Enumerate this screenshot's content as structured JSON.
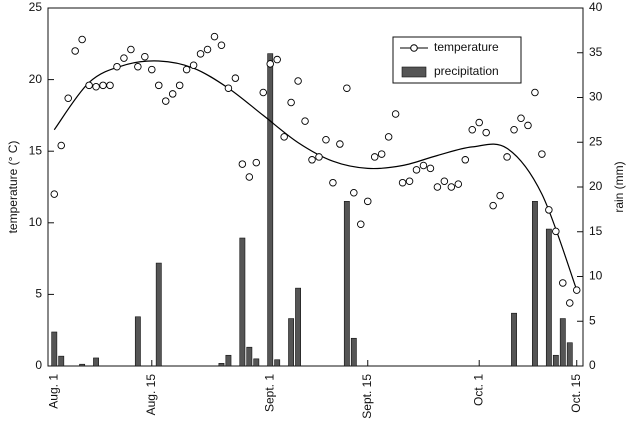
{
  "chart_data": {
    "type": "scatter-bar",
    "ylabel": "temperature (° C)",
    "y2label": "rain (mm)",
    "xlim": [
      -0.9,
      75.9
    ],
    "xticks": [
      {
        "value": 0,
        "label": "Aug. 1"
      },
      {
        "value": 14,
        "label": "Aug. 15"
      },
      {
        "value": 31,
        "label": "Sept. 1"
      },
      {
        "value": 45,
        "label": "Sept. 15"
      },
      {
        "value": 61,
        "label": "Oct. 1"
      },
      {
        "value": 75,
        "label": "Oct. 15"
      }
    ],
    "ylim": [
      0,
      25
    ],
    "yticks": [
      0,
      5,
      10,
      15,
      20,
      25
    ],
    "y2lim": [
      0,
      40
    ],
    "y2ticks": [
      0,
      5,
      10,
      15,
      20,
      25,
      30,
      35,
      40
    ],
    "legend": "upper right",
    "x": [
      0,
      1,
      2,
      3,
      4,
      5,
      6,
      7,
      8,
      9,
      10,
      11,
      12,
      13,
      14,
      15,
      16,
      17,
      18,
      19,
      20,
      21,
      22,
      23,
      24,
      25,
      26,
      27,
      28,
      29,
      30,
      31,
      32,
      33,
      34,
      35,
      36,
      37,
      38,
      39,
      40,
      41,
      42,
      43,
      44,
      45,
      46,
      47,
      48,
      49,
      50,
      51,
      52,
      53,
      54,
      55,
      56,
      57,
      58,
      59,
      60,
      61,
      62,
      63,
      64,
      65,
      66,
      67,
      68,
      69,
      70,
      71,
      72,
      73,
      74,
      75
    ],
    "series": [
      {
        "name": "temperature",
        "color": "#000000",
        "values": [
          12.0,
          15.4,
          18.7,
          22.0,
          22.8,
          19.6,
          19.5,
          19.6,
          19.6,
          20.9,
          21.5,
          22.1,
          20.9,
          21.6,
          20.7,
          19.6,
          18.5,
          19.0,
          19.6,
          20.7,
          21.0,
          21.8,
          22.1,
          23.0,
          22.4,
          19.4,
          20.1,
          14.1,
          13.2,
          14.2,
          19.1,
          21.1,
          21.4,
          16.0,
          18.4,
          19.9,
          17.1,
          14.4,
          14.6,
          15.8,
          12.8,
          15.5,
          19.4,
          12.1,
          9.9,
          11.5,
          14.6,
          14.8,
          16.0,
          17.6,
          12.8,
          12.9,
          13.7,
          14.0,
          13.8,
          12.5,
          12.9,
          12.5,
          12.7,
          14.4,
          16.5,
          17.0,
          16.3,
          11.2,
          11.9,
          14.6,
          16.5,
          17.3,
          16.8,
          19.1,
          14.8,
          10.9,
          9.4,
          5.8,
          4.4,
          5.3
        ],
        "fit_x": [
          0,
          5,
          10,
          15,
          20,
          25,
          30,
          35,
          40,
          45,
          50,
          55,
          60,
          65,
          70,
          75
        ],
        "fit_values": [
          16.5,
          19.8,
          21.0,
          21.3,
          20.8,
          19.4,
          17.5,
          15.6,
          14.3,
          13.8,
          14.0,
          14.7,
          15.3,
          15.2,
          12.0,
          5.3
        ]
      },
      {
        "name": "precipitation",
        "color": "#555555",
        "axis": "y2",
        "values": [
          3.8,
          1.1,
          0,
          0,
          0.2,
          0,
          0.9,
          0,
          0,
          0,
          0,
          0,
          5.5,
          0,
          0,
          11.5,
          0,
          0,
          0,
          0,
          0,
          0,
          0,
          0,
          0.3,
          1.2,
          0,
          14.3,
          2.1,
          0.8,
          0,
          34.9,
          0.7,
          0,
          5.3,
          8.7,
          0,
          0,
          0,
          0,
          0,
          0,
          18.4,
          3.1,
          0,
          0,
          0,
          0,
          0,
          0,
          0,
          0,
          0,
          0,
          0,
          0,
          0,
          0,
          0,
          0,
          0,
          0,
          0,
          0,
          0,
          0,
          5.9,
          0,
          0,
          18.4,
          0,
          15.3,
          1.2,
          5.3,
          2.6,
          0
        ]
      }
    ]
  }
}
